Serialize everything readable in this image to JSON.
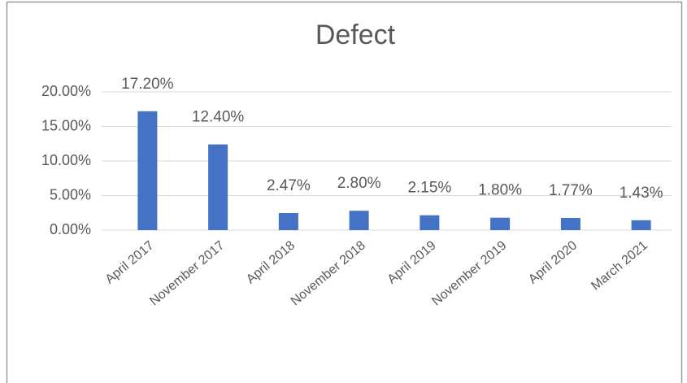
{
  "chart_data": {
    "type": "bar",
    "title": "Defect",
    "categories": [
      "April 2017",
      "November 2017",
      "April 2018",
      "November 2018",
      "April 2019",
      "November 2019",
      "April 2020",
      "March  2021"
    ],
    "values": [
      17.2,
      12.4,
      2.47,
      2.8,
      2.15,
      1.8,
      1.77,
      1.43
    ],
    "value_labels": [
      "17.20%",
      "12.40%",
      "2.47%",
      "2.80%",
      "2.15%",
      "1.80%",
      "1.77%",
      "1.43%"
    ],
    "color": "#4472c4",
    "ylim": [
      0,
      20
    ],
    "yticks": [
      {
        "value": 0,
        "label": "0.00%"
      },
      {
        "value": 5,
        "label": "5.00%"
      },
      {
        "value": 10,
        "label": "10.00%"
      },
      {
        "value": 15,
        "label": "15.00%"
      },
      {
        "value": 20,
        "label": "20.00%"
      }
    ],
    "grid": true
  }
}
